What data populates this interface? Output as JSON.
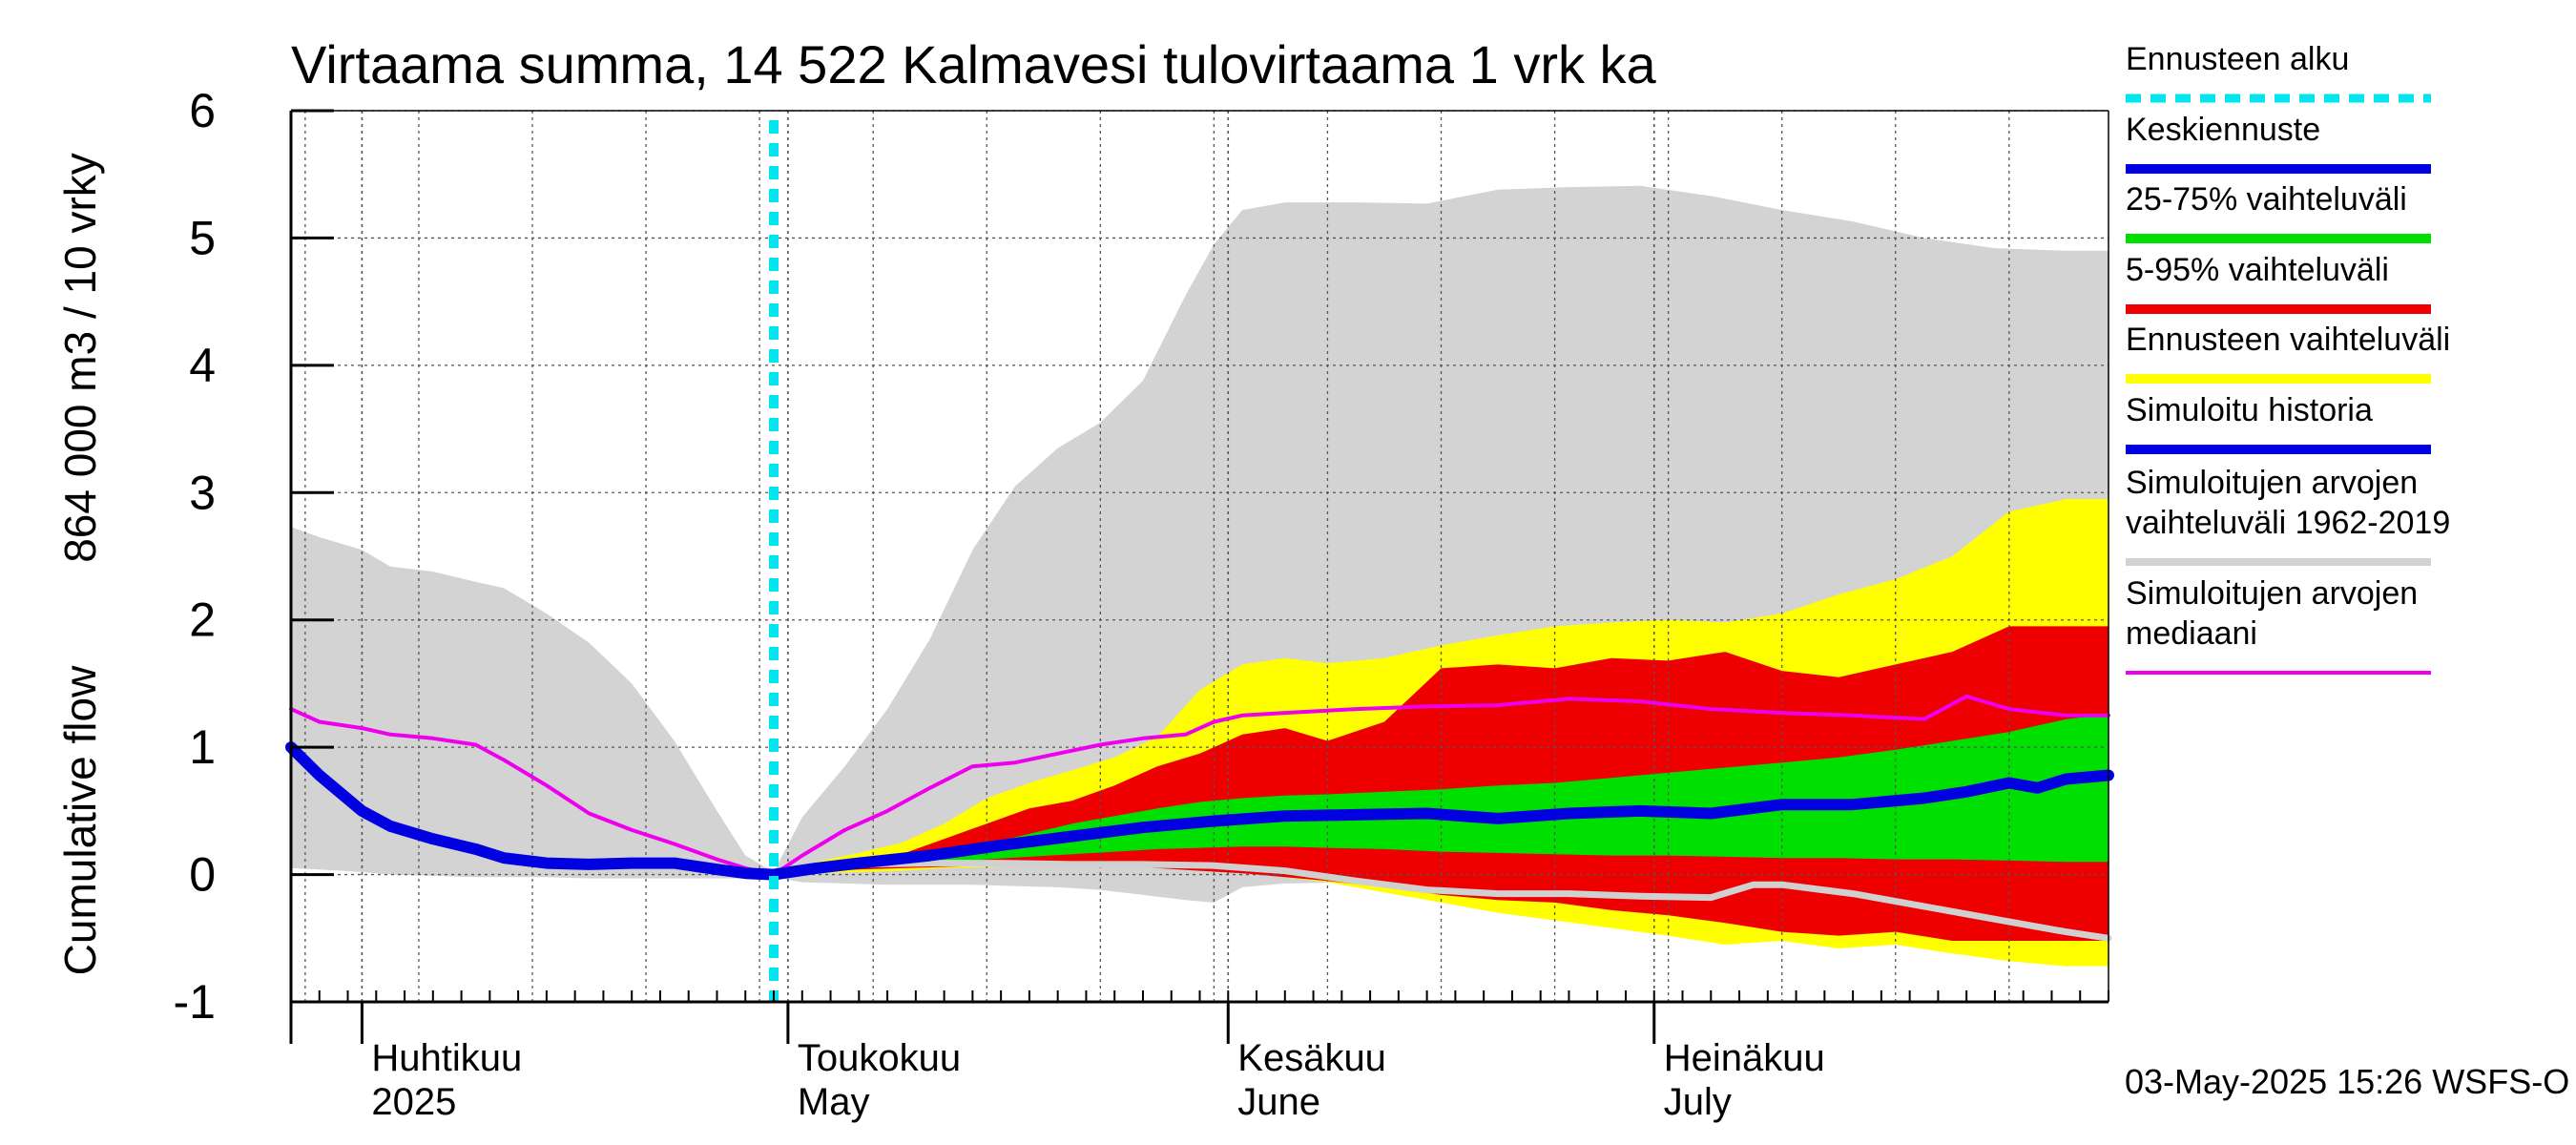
{
  "chart_data": {
    "type": "area",
    "title": "Virtaama summa, 14 522 Kalmavesi tulovirtaama 1 vrk ka",
    "ylabel_line1": "864 000 m3 / 10 vrky",
    "ylabel_line2": "Cumulative flow",
    "ylim": [
      -1,
      6
    ],
    "yticks": [
      "-1",
      "0",
      "1",
      "2",
      "3",
      "4",
      "5",
      "6"
    ],
    "grid": true,
    "legend_position": "right",
    "x_unit": "day-of-year (2025)",
    "xlim": [
      85,
      213
    ],
    "forecast_start": 119,
    "month_labels": [
      {
        "day": 91,
        "fi": "Huhtikuu",
        "en": "2025"
      },
      {
        "day": 121,
        "fi": "Toukokuu",
        "en": "May"
      },
      {
        "day": 152,
        "fi": "Kesäkuu",
        "en": "June"
      },
      {
        "day": 182,
        "fi": "Heinäkuu",
        "en": "July"
      }
    ],
    "timestamp": "03-May-2025 15:26 WSFS-O",
    "legend": [
      {
        "label": "Ennusteen alku",
        "color": "#00e5ee",
        "style": "dotted"
      },
      {
        "label": "Keskiennuste",
        "color": "#0000e0",
        "style": "solid"
      },
      {
        "label": "25-75% vaihteluväli",
        "color": "#00e000",
        "style": "solid"
      },
      {
        "label": "5-95% vaihteluväli",
        "color": "#ee0000",
        "style": "solid"
      },
      {
        "label": "Ennusteen vaihteluväli",
        "color": "#ffff00",
        "style": "solid"
      },
      {
        "label": "Simuloitu historia",
        "color": "#0000e0",
        "style": "solid"
      },
      {
        "label": "Simuloitujen arvojen vaihteluväli 1962-2019",
        "lines": [
          "Simuloitujen arvojen",
          "vaihteluväli 1962-2019"
        ],
        "color": "#d3d3d3",
        "style": "solid"
      },
      {
        "label": "Simuloitujen arvojen mediaani",
        "lines": [
          "Simuloitujen arvojen",
          "mediaani"
        ],
        "color": "#ee00ee",
        "style": "solid"
      }
    ],
    "series": [
      {
        "key": "hist_range",
        "fill": "#d3d3d3",
        "x": [
          85,
          87,
          90,
          92,
          95,
          98,
          100,
          103,
          106,
          109,
          112,
          115,
          117,
          119,
          121,
          124,
          127,
          130,
          133,
          136,
          139,
          142,
          145,
          148,
          150,
          152,
          155,
          160,
          165,
          170,
          175,
          180,
          185,
          190,
          195,
          200,
          205,
          210,
          213
        ],
        "upper": [
          2.73,
          2.65,
          2.55,
          2.42,
          2.38,
          2.3,
          2.25,
          2.05,
          1.82,
          1.5,
          1.05,
          0.5,
          0.15,
          0.02,
          0.45,
          0.85,
          1.3,
          1.85,
          2.55,
          3.05,
          3.35,
          3.55,
          3.88,
          4.55,
          4.95,
          5.22,
          5.28,
          5.28,
          5.27,
          5.38,
          5.4,
          5.41,
          5.33,
          5.22,
          5.13,
          5.0,
          4.92,
          4.9,
          4.9
        ],
        "lower": [
          0.05,
          0.04,
          0.02,
          0.0,
          -0.01,
          -0.02,
          -0.02,
          -0.02,
          -0.03,
          -0.03,
          -0.03,
          -0.03,
          -0.03,
          -0.02,
          -0.06,
          -0.07,
          -0.08,
          -0.08,
          -0.08,
          -0.09,
          -0.1,
          -0.12,
          -0.16,
          -0.2,
          -0.22,
          -0.1,
          -0.07,
          -0.06,
          -0.05,
          -0.05,
          -0.05,
          -0.05,
          -0.05,
          -0.05,
          -0.05,
          -0.05,
          -0.05,
          -0.05,
          -0.05
        ]
      },
      {
        "key": "forecast_range",
        "fill": "#ffff00",
        "x": [
          119,
          122,
          125,
          128,
          131,
          134,
          137,
          140,
          143,
          146,
          149,
          152,
          155,
          158,
          162,
          166,
          170,
          174,
          178,
          182,
          186,
          190,
          194,
          198,
          202,
          206,
          210,
          213
        ],
        "upper": [
          0.0,
          0.1,
          0.17,
          0.25,
          0.4,
          0.6,
          0.72,
          0.82,
          0.92,
          1.08,
          1.45,
          1.65,
          1.7,
          1.66,
          1.7,
          1.8,
          1.88,
          1.95,
          1.98,
          2.0,
          1.98,
          2.05,
          2.2,
          2.32,
          2.5,
          2.85,
          2.95,
          2.95
        ],
        "lower": [
          0.0,
          0.01,
          0.02,
          0.03,
          0.05,
          0.06,
          0.07,
          0.08,
          0.08,
          0.07,
          0.05,
          0.02,
          -0.02,
          -0.06,
          -0.14,
          -0.22,
          -0.3,
          -0.36,
          -0.42,
          -0.48,
          -0.55,
          -0.52,
          -0.58,
          -0.55,
          -0.62,
          -0.68,
          -0.72,
          -0.72
        ]
      },
      {
        "key": "p5_95",
        "fill": "#ee0000",
        "x": [
          119,
          122,
          125,
          128,
          131,
          134,
          137,
          140,
          143,
          146,
          149,
          152,
          155,
          158,
          162,
          166,
          170,
          174,
          178,
          182,
          186,
          190,
          194,
          198,
          202,
          206,
          210,
          213
        ],
        "upper": [
          0.0,
          0.06,
          0.1,
          0.16,
          0.28,
          0.4,
          0.52,
          0.58,
          0.7,
          0.85,
          0.95,
          1.1,
          1.15,
          1.05,
          1.2,
          1.62,
          1.65,
          1.62,
          1.7,
          1.68,
          1.75,
          1.6,
          1.55,
          1.65,
          1.75,
          1.95,
          1.95,
          1.95
        ],
        "lower": [
          0.0,
          0.02,
          0.04,
          0.05,
          0.06,
          0.07,
          0.08,
          0.08,
          0.07,
          0.05,
          0.03,
          0.01,
          -0.02,
          -0.05,
          -0.1,
          -0.16,
          -0.2,
          -0.22,
          -0.28,
          -0.32,
          -0.38,
          -0.45,
          -0.48,
          -0.45,
          -0.52,
          -0.52,
          -0.52,
          -0.52
        ]
      },
      {
        "key": "p25_75",
        "fill": "#00e000",
        "x": [
          119,
          122,
          125,
          128,
          131,
          134,
          137,
          140,
          143,
          146,
          149,
          152,
          155,
          158,
          162,
          166,
          170,
          174,
          178,
          182,
          186,
          190,
          194,
          198,
          202,
          206,
          210,
          213
        ],
        "upper": [
          0.0,
          0.04,
          0.07,
          0.12,
          0.17,
          0.24,
          0.32,
          0.4,
          0.46,
          0.52,
          0.57,
          0.6,
          0.62,
          0.63,
          0.65,
          0.67,
          0.7,
          0.72,
          0.76,
          0.8,
          0.84,
          0.88,
          0.92,
          0.98,
          1.05,
          1.12,
          1.22,
          1.26
        ],
        "lower": [
          0.0,
          0.04,
          0.06,
          0.08,
          0.1,
          0.12,
          0.14,
          0.16,
          0.18,
          0.2,
          0.21,
          0.22,
          0.22,
          0.21,
          0.2,
          0.18,
          0.17,
          0.16,
          0.15,
          0.15,
          0.14,
          0.13,
          0.13,
          0.12,
          0.12,
          0.11,
          0.1,
          0.1
        ]
      },
      {
        "key": "median",
        "name": "Simuloitujen arvojen mediaani",
        "stroke": "#ee00ee",
        "width": 4,
        "x": [
          85,
          87,
          90,
          92,
          95,
          98,
          100,
          103,
          106,
          109,
          112,
          115,
          117,
          119,
          121,
          124,
          127,
          130,
          133,
          136,
          139,
          142,
          145,
          148,
          150,
          152,
          155,
          160,
          165,
          170,
          175,
          180,
          185,
          190,
          195,
          200,
          203,
          206,
          210,
          213
        ],
        "y": [
          1.3,
          1.2,
          1.15,
          1.1,
          1.07,
          1.02,
          0.9,
          0.7,
          0.48,
          0.35,
          0.24,
          0.12,
          0.05,
          0.0,
          0.15,
          0.35,
          0.5,
          0.68,
          0.85,
          0.88,
          0.95,
          1.02,
          1.07,
          1.1,
          1.2,
          1.25,
          1.27,
          1.3,
          1.32,
          1.33,
          1.38,
          1.36,
          1.3,
          1.27,
          1.25,
          1.22,
          1.4,
          1.3,
          1.25,
          1.25
        ]
      },
      {
        "key": "hist_sim_gray",
        "name": "Simuloitujen arvojen vaihteluväli 1962-2019 (alaraja)",
        "stroke": "#d0d0d0",
        "width": 7,
        "x": [
          119,
          122,
          125,
          130,
          135,
          140,
          145,
          150,
          155,
          160,
          165,
          170,
          175,
          180,
          185,
          188,
          190,
          195,
          200,
          205,
          210,
          213
        ],
        "y": [
          0.0,
          0.05,
          0.08,
          0.09,
          0.09,
          0.08,
          0.08,
          0.07,
          0.03,
          -0.05,
          -0.12,
          -0.15,
          -0.15,
          -0.17,
          -0.18,
          -0.08,
          -0.08,
          -0.15,
          -0.25,
          -0.35,
          -0.45,
          -0.5
        ]
      },
      {
        "key": "mean_forecast",
        "name": "Keskiennuste",
        "stroke": "#0000e0",
        "width": 12,
        "x": [
          85,
          87,
          90,
          92,
          95,
          98,
          100,
          103,
          106,
          109,
          112,
          115,
          117,
          119,
          122,
          125,
          130,
          135,
          140,
          145,
          150,
          155,
          160,
          165,
          170,
          175,
          180,
          185,
          190,
          195,
          200,
          203,
          206,
          208,
          210,
          213
        ],
        "y": [
          1.0,
          0.78,
          0.5,
          0.38,
          0.28,
          0.2,
          0.13,
          0.09,
          0.08,
          0.09,
          0.09,
          0.04,
          0.01,
          0.0,
          0.05,
          0.09,
          0.15,
          0.23,
          0.3,
          0.37,
          0.42,
          0.46,
          0.47,
          0.48,
          0.44,
          0.48,
          0.5,
          0.48,
          0.55,
          0.55,
          0.6,
          0.65,
          0.72,
          0.68,
          0.75,
          0.78
        ]
      }
    ]
  }
}
